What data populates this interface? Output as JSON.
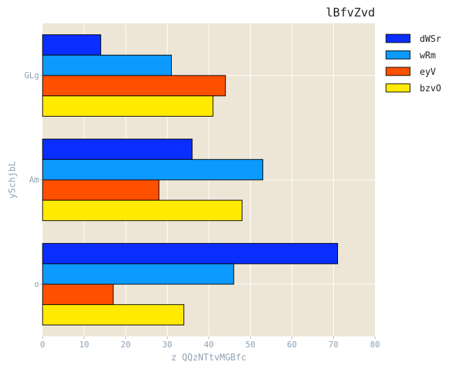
{
  "chart_data": {
    "type": "bar",
    "orientation": "horizontal",
    "title": "lBfvZvd",
    "xlabel": "z QQzNTtvMGBfc",
    "ylabel": "ySchjbL",
    "categories": [
      "o",
      "Am",
      "GLg"
    ],
    "xlim": [
      0,
      80
    ],
    "xticks": [
      0,
      10,
      20,
      30,
      40,
      50,
      60,
      70,
      80
    ],
    "grid": true,
    "legend_position": "right",
    "background": "#ede6d6",
    "series": [
      {
        "name": "dWSr",
        "color": "#0a2eff",
        "values": [
          71,
          36,
          14
        ]
      },
      {
        "name": "wRm",
        "color": "#0c9aff",
        "values": [
          46,
          53,
          31
        ]
      },
      {
        "name": "eyV",
        "color": "#ff5000",
        "values": [
          17,
          28,
          44
        ]
      },
      {
        "name": "bzvO",
        "color": "#ffea00",
        "values": [
          34,
          48,
          41
        ]
      }
    ]
  }
}
